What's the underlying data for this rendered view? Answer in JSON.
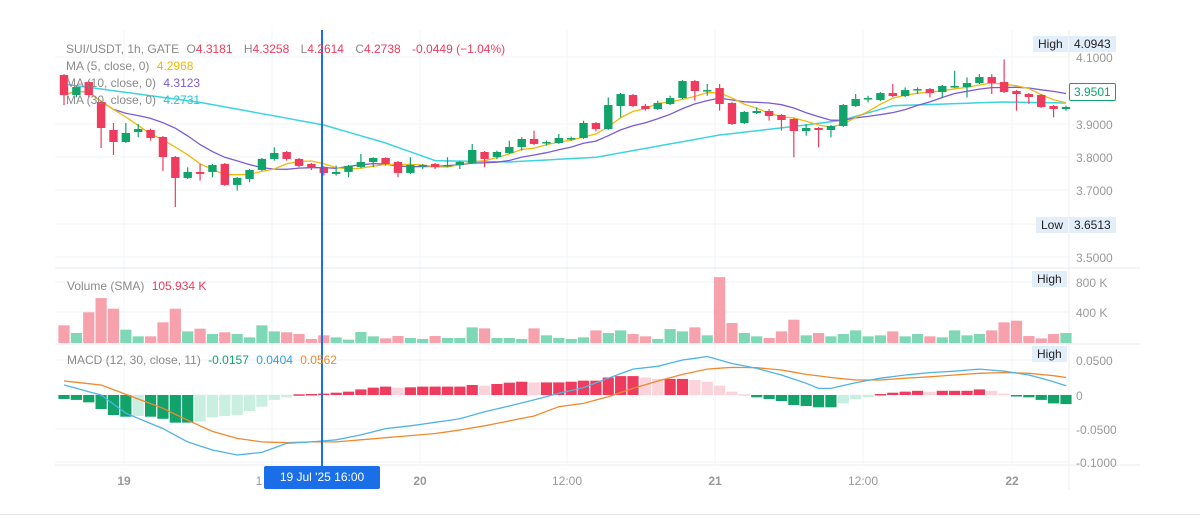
{
  "legend": {
    "symbol": "SUI/USDT, 1h, GATE",
    "o_label": "O",
    "o": "4.3181",
    "h_label": "H",
    "h": "4.3258",
    "l_label": "L",
    "l": "4.2614",
    "c_label": "C",
    "c": "4.2738",
    "change": "-0.0449 (−1.04%)",
    "ma5_label": "MA (5, close, 0)",
    "ma5": "4.2968",
    "ma10_label": "MA (10, close, 0)",
    "ma10": "4.3123",
    "ma30_label": "MA (30, close, 0)",
    "ma30": "4.2731",
    "volume_label": "Volume (SMA)",
    "volume": "105.934 K",
    "macd_label": "MACD (12, 30, close, 11)",
    "macd_hist": "-0.0157",
    "macd_line": "0.0404",
    "macd_signal": "0.0562"
  },
  "price_axis": {
    "ticks": [
      "4.1000",
      "3.9000",
      "3.8000",
      "3.7000",
      "3.5000"
    ],
    "high_label": "High",
    "high": "4.0943",
    "low_label": "Low",
    "low": "3.6513",
    "current": "3.9501"
  },
  "volume_axis": {
    "ticks": [
      "800 K",
      "400 K"
    ],
    "high_label": "High"
  },
  "macd_axis": {
    "ticks": [
      "0.0500",
      "0",
      "-0.0500",
      "-0.1000"
    ],
    "high_label": "High"
  },
  "time_axis": {
    "labels": [
      "19",
      "1",
      "20",
      "12:00",
      "21",
      "12:00",
      "22"
    ],
    "crosshair": "19 Jul '25   16:00"
  },
  "colors": {
    "up": "#12a36b",
    "down": "#ef3b5d",
    "vol_up": "#7fd8b5",
    "vol_down": "#f7a1ad",
    "ma5": "#f0b90b",
    "ma10": "#7b5bd6",
    "ma30": "#3dd3e0",
    "macd": "#4fb3e8",
    "signal": "#f0892d",
    "crosshair": "#1a6ee8"
  },
  "chart_data": {
    "type": "candlestick",
    "interval": "1h",
    "ohlc": [
      [
        4.047,
        4.05,
        3.957,
        3.987
      ],
      [
        3.987,
        4.015,
        3.98,
        4.011
      ],
      [
        4.026,
        4.03,
        3.98,
        3.987
      ],
      [
        3.966,
        3.97,
        3.828,
        3.888
      ],
      [
        3.882,
        3.903,
        3.807,
        3.846
      ],
      [
        3.846,
        3.903,
        3.843,
        3.873
      ],
      [
        3.876,
        3.9,
        3.86,
        3.885
      ],
      [
        3.882,
        3.886,
        3.85,
        3.858
      ],
      [
        3.861,
        3.864,
        3.759,
        3.801
      ],
      [
        3.801,
        3.804,
        3.651,
        3.738
      ],
      [
        3.738,
        3.77,
        3.735,
        3.756
      ],
      [
        3.756,
        3.78,
        3.73,
        3.75
      ],
      [
        3.756,
        3.78,
        3.74,
        3.777
      ],
      [
        3.78,
        3.783,
        3.714,
        3.717
      ],
      [
        3.717,
        3.741,
        3.7,
        3.738
      ],
      [
        3.735,
        3.765,
        3.725,
        3.762
      ],
      [
        3.762,
        3.798,
        3.759,
        3.795
      ],
      [
        3.795,
        3.83,
        3.79,
        3.813
      ],
      [
        3.816,
        3.819,
        3.79,
        3.795
      ],
      [
        3.795,
        3.798,
        3.77,
        3.774
      ],
      [
        3.78,
        3.783,
        3.762,
        3.768
      ],
      [
        3.771,
        3.774,
        3.745,
        3.753
      ],
      [
        3.75,
        3.775,
        3.745,
        3.756
      ],
      [
        3.756,
        3.777,
        3.74,
        3.774
      ],
      [
        3.771,
        3.81,
        3.768,
        3.786
      ],
      [
        3.786,
        3.8,
        3.77,
        3.798
      ],
      [
        3.798,
        3.8,
        3.775,
        3.78
      ],
      [
        3.786,
        3.789,
        3.74,
        3.753
      ],
      [
        3.753,
        3.8,
        3.75,
        3.777
      ],
      [
        3.774,
        3.78,
        3.765,
        3.777
      ],
      [
        3.78,
        3.783,
        3.765,
        3.771
      ],
      [
        3.774,
        3.8,
        3.77,
        3.777
      ],
      [
        3.777,
        3.79,
        3.765,
        3.786
      ],
      [
        3.783,
        3.84,
        3.78,
        3.822
      ],
      [
        3.816,
        3.819,
        3.77,
        3.795
      ],
      [
        3.801,
        3.82,
        3.795,
        3.816
      ],
      [
        3.813,
        3.85,
        3.81,
        3.831
      ],
      [
        3.831,
        3.86,
        3.82,
        3.855
      ],
      [
        3.855,
        3.88,
        3.837,
        3.84
      ],
      [
        3.843,
        3.85,
        3.835,
        3.846
      ],
      [
        3.843,
        3.87,
        3.84,
        3.858
      ],
      [
        3.855,
        3.862,
        3.85,
        3.858
      ],
      [
        3.858,
        3.91,
        3.855,
        3.903
      ],
      [
        3.903,
        3.906,
        3.878,
        3.885
      ],
      [
        3.885,
        3.98,
        3.882,
        3.957
      ],
      [
        3.954,
        3.993,
        3.92,
        3.99
      ],
      [
        3.987,
        3.99,
        3.951,
        3.954
      ],
      [
        3.954,
        3.96,
        3.94,
        3.945
      ],
      [
        3.945,
        3.97,
        3.942,
        3.963
      ],
      [
        3.96,
        3.985,
        3.957,
        3.978
      ],
      [
        3.978,
        4.032,
        3.975,
        4.029
      ],
      [
        4.029,
        4.032,
        3.97,
        3.999
      ],
      [
        3.999,
        4.02,
        3.985,
        4.002
      ],
      [
        4.008,
        4.02,
        3.94,
        3.96
      ],
      [
        3.963,
        3.966,
        3.897,
        3.9
      ],
      [
        3.903,
        3.939,
        3.9,
        3.936
      ],
      [
        3.933,
        3.95,
        3.93,
        3.939
      ],
      [
        3.939,
        3.945,
        3.91,
        3.924
      ],
      [
        3.927,
        3.93,
        3.88,
        3.912
      ],
      [
        3.915,
        3.918,
        3.8,
        3.879
      ],
      [
        3.879,
        3.9,
        3.865,
        3.888
      ],
      [
        3.888,
        3.891,
        3.83,
        3.882
      ],
      [
        3.882,
        3.897,
        3.86,
        3.894
      ],
      [
        3.894,
        3.96,
        3.891,
        3.957
      ],
      [
        3.954,
        3.99,
        3.951,
        3.975
      ],
      [
        3.975,
        3.985,
        3.965,
        3.978
      ],
      [
        3.972,
        3.996,
        3.969,
        3.993
      ],
      [
        3.993,
        4.02,
        3.981,
        3.984
      ],
      [
        3.984,
        4.01,
        3.981,
        4.002
      ],
      [
        4.002,
        4.01,
        3.99,
        4.005
      ],
      [
        4.005,
        4.008,
        3.98,
        3.993
      ],
      [
        3.996,
        4.017,
        3.98,
        4.014
      ],
      [
        4.011,
        4.06,
        4.008,
        4.014
      ],
      [
        4.011,
        4.04,
        3.98,
        4.023
      ],
      [
        4.023,
        4.05,
        4.02,
        4.041
      ],
      [
        4.041,
        4.05,
        3.99,
        4.023
      ],
      [
        4.026,
        4.094,
        3.993,
        3.996
      ],
      [
        3.999,
        4.002,
        3.94,
        3.99
      ],
      [
        3.99,
        3.993,
        3.96,
        3.981
      ],
      [
        3.987,
        3.99,
        3.948,
        3.951
      ],
      [
        3.954,
        3.957,
        3.92,
        3.945
      ],
      [
        3.945,
        3.955,
        3.94,
        3.951
      ]
    ],
    "volume_k": [
      228,
      129,
      396,
      580,
      443,
      172,
      86,
      86,
      267,
      443,
      150,
      185,
      116,
      138,
      116,
      73,
      228,
      150,
      138,
      116,
      52,
      99,
      73,
      43,
      142,
      86,
      60,
      90,
      65,
      52,
      90,
      65,
      65,
      202,
      189,
      65,
      65,
      52,
      189,
      99,
      65,
      52,
      73,
      163,
      129,
      163,
      116,
      86,
      52,
      180,
      150,
      202,
      99,
      850,
      258,
      129,
      86,
      65,
      150,
      301,
      99,
      129,
      86,
      116,
      163,
      86,
      99,
      150,
      86,
      116,
      86,
      73,
      163,
      99,
      116,
      163,
      267,
      288,
      90,
      60,
      116,
      129
    ],
    "ma30_samples": [
      [
        0,
        4.02
      ],
      [
        4,
        4.0
      ],
      [
        11,
        3.965
      ],
      [
        21,
        3.897
      ],
      [
        26,
        3.843
      ],
      [
        30,
        3.79
      ],
      [
        36,
        3.786
      ],
      [
        43,
        3.8
      ],
      [
        53,
        3.867
      ],
      [
        60,
        3.897
      ],
      [
        63,
        3.912
      ],
      [
        67,
        3.955
      ],
      [
        76,
        3.966
      ],
      [
        81,
        3.963
      ]
    ],
    "macd_hist": [
      -0.0057,
      -0.007,
      -0.0105,
      -0.02,
      -0.0286,
      -0.031,
      -0.03,
      -0.031,
      -0.034,
      -0.0395,
      -0.0395,
      -0.038,
      -0.032,
      -0.03,
      -0.0286,
      -0.023,
      -0.0167,
      -0.007,
      -0.0033,
      0.001,
      0.0014,
      0.002,
      0.0033,
      0.0048,
      0.008,
      0.0105,
      0.012,
      0.0105,
      0.011,
      0.012,
      0.012,
      0.012,
      0.012,
      0.0143,
      0.0133,
      0.0157,
      0.0176,
      0.019,
      0.018,
      0.018,
      0.018,
      0.019,
      0.0205,
      0.0205,
      0.025,
      0.027,
      0.027,
      0.025,
      0.023,
      0.023,
      0.023,
      0.0214,
      0.019,
      0.0133,
      0.0048,
      0.001,
      -0.0033,
      -0.0057,
      -0.0086,
      -0.0143,
      -0.0157,
      -0.0176,
      -0.0176,
      -0.012,
      -0.006,
      -0.0033,
      0.0014,
      0.0033,
      0.0048,
      0.006,
      0.0048,
      0.006,
      0.006,
      0.006,
      0.008,
      0.006,
      0.002,
      -0.0014,
      -0.0033,
      -0.007,
      -0.012,
      -0.013
    ],
    "macd_samples": [
      [
        0,
        0.0143
      ],
      [
        3,
        0
      ],
      [
        5,
        -0.026
      ],
      [
        8,
        -0.048
      ],
      [
        10,
        -0.067
      ],
      [
        12,
        -0.0786
      ],
      [
        14,
        -0.0857
      ],
      [
        16,
        -0.082
      ],
      [
        18,
        -0.069
      ],
      [
        20,
        -0.067
      ],
      [
        22,
        -0.064
      ],
      [
        24,
        -0.057
      ],
      [
        26,
        -0.048
      ],
      [
        28,
        -0.044
      ],
      [
        30,
        -0.039
      ],
      [
        32,
        -0.034
      ],
      [
        34,
        -0.024
      ],
      [
        36,
        -0.0157
      ],
      [
        38,
        -0.007
      ],
      [
        40,
        0.0024
      ],
      [
        42,
        0.0105
      ],
      [
        44,
        0.024
      ],
      [
        46,
        0.037
      ],
      [
        48,
        0.041
      ],
      [
        50,
        0.05
      ],
      [
        52,
        0.055
      ],
      [
        54,
        0.045
      ],
      [
        56,
        0.038
      ],
      [
        58,
        0.0286
      ],
      [
        60,
        0.0167
      ],
      [
        61,
        0.0095
      ],
      [
        62,
        0.0095
      ],
      [
        64,
        0.0176
      ],
      [
        66,
        0.024
      ],
      [
        68,
        0.0286
      ],
      [
        70,
        0.032
      ],
      [
        72,
        0.034
      ],
      [
        74,
        0.037
      ],
      [
        76,
        0.034
      ],
      [
        78,
        0.0286
      ],
      [
        80,
        0.019
      ],
      [
        81,
        0.0133
      ]
    ],
    "signal_samples": [
      [
        0,
        0.02
      ],
      [
        3,
        0.0143
      ],
      [
        5,
        0.001
      ],
      [
        8,
        -0.019
      ],
      [
        10,
        -0.036
      ],
      [
        12,
        -0.052
      ],
      [
        14,
        -0.062
      ],
      [
        16,
        -0.067
      ],
      [
        18,
        -0.068
      ],
      [
        20,
        -0.067
      ],
      [
        22,
        -0.067
      ],
      [
        24,
        -0.064
      ],
      [
        26,
        -0.061
      ],
      [
        28,
        -0.058
      ],
      [
        30,
        -0.055
      ],
      [
        32,
        -0.05
      ],
      [
        34,
        -0.044
      ],
      [
        36,
        -0.037
      ],
      [
        38,
        -0.03
      ],
      [
        40,
        -0.0167
      ],
      [
        42,
        -0.012
      ],
      [
        44,
        -0.0024
      ],
      [
        46,
        0.0095
      ],
      [
        48,
        0.02
      ],
      [
        50,
        0.0295
      ],
      [
        52,
        0.037
      ],
      [
        54,
        0.0395
      ],
      [
        56,
        0.039
      ],
      [
        58,
        0.0357
      ],
      [
        60,
        0.0295
      ],
      [
        62,
        0.025
      ],
      [
        64,
        0.0214
      ],
      [
        66,
        0.0214
      ],
      [
        68,
        0.024
      ],
      [
        70,
        0.026
      ],
      [
        72,
        0.0286
      ],
      [
        74,
        0.031
      ],
      [
        76,
        0.032
      ],
      [
        78,
        0.031
      ],
      [
        80,
        0.0276
      ],
      [
        81,
        0.025
      ]
    ],
    "price_range": [
      3.45,
      4.12
    ],
    "volume_range_k": [
      0,
      900
    ],
    "macd_range": [
      -0.1,
      0.06
    ],
    "grid": true
  }
}
